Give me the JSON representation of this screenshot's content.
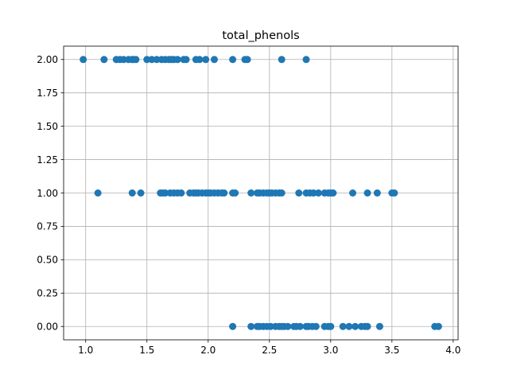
{
  "chart_data": {
    "type": "scatter",
    "title": "total_phenols",
    "xlabel": "",
    "ylabel": "",
    "xlim": [
      0.82,
      4.04
    ],
    "ylim": [
      -0.1,
      2.1
    ],
    "xticks": [
      1.0,
      1.5,
      2.0,
      2.5,
      3.0,
      3.5,
      4.0
    ],
    "xtick_labels": [
      "1.0",
      "1.5",
      "2.0",
      "2.5",
      "3.0",
      "3.5",
      "4.0"
    ],
    "yticks": [
      0.0,
      0.25,
      0.5,
      0.75,
      1.0,
      1.25,
      1.5,
      1.75,
      2.0
    ],
    "ytick_labels": [
      "0.00",
      "0.25",
      "0.50",
      "0.75",
      "1.00",
      "1.25",
      "1.50",
      "1.75",
      "2.00"
    ],
    "grid": true,
    "marker_color": "#1f77b4",
    "points": {
      "y2": [
        0.98,
        1.15,
        1.25,
        1.28,
        1.31,
        1.35,
        1.38,
        1.39,
        1.41,
        1.5,
        1.54,
        1.58,
        1.62,
        1.65,
        1.68,
        1.7,
        1.72,
        1.75,
        1.8,
        1.82,
        1.9,
        1.93,
        1.98,
        2.05,
        2.2,
        2.3,
        2.32,
        2.6,
        2.8
      ],
      "y1": [
        1.1,
        1.38,
        1.45,
        1.61,
        1.63,
        1.65,
        1.69,
        1.72,
        1.75,
        1.78,
        1.85,
        1.88,
        1.9,
        1.92,
        1.95,
        1.98,
        2.0,
        2.02,
        2.05,
        2.08,
        2.11,
        2.13,
        2.2,
        2.22,
        2.35,
        2.4,
        2.42,
        2.45,
        2.48,
        2.5,
        2.52,
        2.55,
        2.58,
        2.6,
        2.74,
        2.8,
        2.83,
        2.86,
        2.9,
        2.95,
        2.98,
        3.0,
        3.02,
        3.18,
        3.3,
        3.38,
        3.5,
        3.52
      ],
      "y0": [
        2.2,
        2.35,
        2.4,
        2.42,
        2.45,
        2.48,
        2.51,
        2.55,
        2.58,
        2.6,
        2.62,
        2.65,
        2.7,
        2.72,
        2.75,
        2.8,
        2.82,
        2.85,
        2.88,
        2.95,
        2.98,
        3.0,
        3.1,
        3.15,
        3.2,
        3.25,
        3.28,
        3.3,
        3.4,
        3.85,
        3.88
      ]
    }
  }
}
